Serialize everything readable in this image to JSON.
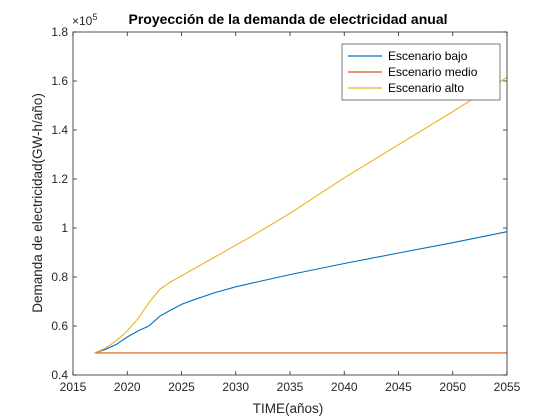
{
  "chart_data": {
    "type": "line",
    "title": "Proyección de la demanda de electricidad anual",
    "xlabel": "TIME(años)",
    "ylabel": "Demanda de electricidad(GW-h/año)",
    "y_exponent_label": "×10",
    "y_exponent_power": "5",
    "xlim": [
      2015,
      2055
    ],
    "ylim": [
      40000,
      180000
    ],
    "x_ticks": [
      2015,
      2020,
      2025,
      2030,
      2035,
      2040,
      2045,
      2050,
      2055
    ],
    "x_tick_labels": [
      "2015",
      "2020",
      "2025",
      "2030",
      "2035",
      "2040",
      "2045",
      "2050",
      "2055"
    ],
    "y_ticks": [
      40000,
      60000,
      80000,
      100000,
      120000,
      140000,
      160000,
      180000
    ],
    "y_tick_labels": [
      "0.4",
      "0.6",
      "0.8",
      "1",
      "1.2",
      "1.4",
      "1.6",
      "1.8"
    ],
    "grid": false,
    "legend_position": "top-right",
    "series": [
      {
        "name": "Escenario bajo",
        "color": "#0072BD",
        "x": [
          2017,
          2018,
          2019,
          2020,
          2021,
          2022,
          2023,
          2024,
          2025,
          2026,
          2028,
          2030,
          2032,
          2035,
          2040,
          2045,
          2050,
          2055
        ],
        "y": [
          49000,
          50500,
          52500,
          55500,
          58000,
          60000,
          64000,
          66500,
          68800,
          70500,
          73500,
          76000,
          78000,
          81000,
          85500,
          89800,
          94000,
          98500
        ]
      },
      {
        "name": "Escenario medio",
        "color": "#D95319",
        "x": [
          2017,
          2055
        ],
        "y": [
          49000,
          49000
        ]
      },
      {
        "name": "Escenario alto",
        "color": "#EDB120",
        "x": [
          2017,
          2018,
          2019,
          2020,
          2021,
          2022,
          2023,
          2024,
          2025,
          2026,
          2028,
          2030,
          2032,
          2035,
          2040,
          2045,
          2050,
          2055
        ],
        "y": [
          49000,
          51000,
          54000,
          58000,
          63000,
          69500,
          75000,
          78000,
          80500,
          83000,
          88000,
          93000,
          98000,
          106000,
          120500,
          134000,
          147500,
          161500
        ]
      }
    ]
  }
}
